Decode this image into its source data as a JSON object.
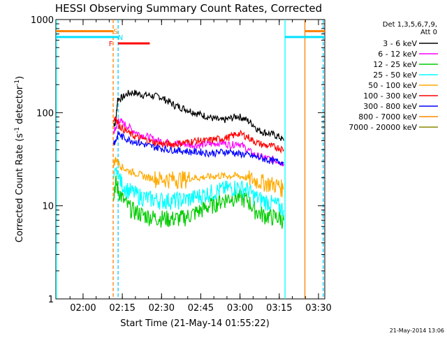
{
  "chart_data": {
    "type": "line",
    "title": "HESSI Observing Summary Count Rates, Corrected",
    "xlabel": "Start Time (21-May-14 01:55:22)",
    "ylabel_main": "Corrected Count Rate (s",
    "ylabel_sup1": "-1",
    "ylabel_mid": " detector",
    "ylabel_sup2": "-1",
    "ylabel_end": ")",
    "yscale": "log",
    "xlim_minutes": [
      -5.4,
      97.4
    ],
    "ylim": [
      1,
      1000
    ],
    "x_ticks": [
      {
        "minute": 5,
        "label": "02:00"
      },
      {
        "minute": 20,
        "label": "02:15"
      },
      {
        "minute": 35,
        "label": "02:30"
      },
      {
        "minute": 50,
        "label": "02:45"
      },
      {
        "minute": 65,
        "label": "03:00"
      },
      {
        "minute": 80,
        "label": "03:15"
      },
      {
        "minute": 95,
        "label": "03:30"
      }
    ],
    "y_ticks": [
      {
        "value": 1,
        "label": "1"
      },
      {
        "value": 10,
        "label": "10"
      },
      {
        "value": 100,
        "label": "100"
      },
      {
        "value": 1000,
        "label": "1000"
      }
    ],
    "legend_header": [
      "Det 1,3,5,6,7,9,",
      "Att 0"
    ],
    "series": [
      {
        "name": "3 - 6 keV",
        "color": "#000000",
        "x": [
          16.7,
          17.5,
          18.2,
          20,
          22,
          24,
          26,
          28,
          30,
          32,
          34,
          36,
          38,
          40,
          42,
          44,
          46,
          48,
          50,
          52,
          54,
          56,
          58,
          60,
          62,
          64,
          66,
          68,
          70,
          72,
          74,
          76,
          78,
          80,
          81.7
        ],
        "y": [
          75,
          80,
          140,
          145,
          160,
          165,
          160,
          155,
          155,
          150,
          150,
          140,
          130,
          120,
          115,
          110,
          105,
          100,
          95,
          92,
          88,
          85,
          82,
          85,
          88,
          92,
          88,
          82,
          75,
          65,
          62,
          60,
          58,
          55,
          50
        ]
      },
      {
        "name": "6 - 12 keV",
        "color": "#ff00ff",
        "x": [
          16.7,
          17.5,
          18.5,
          20,
          22,
          24,
          26,
          28,
          30,
          32,
          34,
          36,
          38,
          40,
          42,
          44,
          46,
          48,
          50,
          52,
          54,
          56,
          58,
          60,
          62,
          64,
          66,
          68,
          70,
          72,
          74,
          76,
          78,
          80,
          81.7
        ],
        "y": [
          62,
          68,
          85,
          78,
          72,
          65,
          60,
          57,
          55,
          52,
          50,
          49,
          48,
          47,
          46,
          46,
          45,
          45,
          45,
          46,
          46,
          47,
          48,
          46,
          45,
          48,
          44,
          40,
          36,
          34,
          33,
          32,
          31,
          30,
          28
        ]
      },
      {
        "name": "12 - 25 keV",
        "color": "#00cc00",
        "x": [
          16.7,
          17.5,
          18.5,
          20,
          22,
          24,
          26,
          28,
          30,
          32,
          34,
          36,
          38,
          40,
          42,
          44,
          46,
          48,
          50,
          52,
          54,
          56,
          58,
          60,
          62,
          64,
          66,
          68,
          70,
          72,
          74,
          76,
          78,
          80,
          81.7
        ],
        "y": [
          14,
          18,
          15,
          12,
          10,
          9,
          8.5,
          8,
          7.8,
          7.5,
          7.5,
          7.4,
          7.3,
          7.3,
          7.4,
          7.6,
          8,
          8.5,
          9,
          9.6,
          10.2,
          10.8,
          11.5,
          12,
          12.3,
          12.5,
          12,
          11.5,
          9.5,
          8.5,
          8,
          7.8,
          7.6,
          7.5,
          7
        ]
      },
      {
        "name": "25 - 50 keV",
        "color": "#00ffff",
        "x": [
          16.7,
          17.5,
          18.5,
          20,
          22,
          24,
          26,
          28,
          30,
          32,
          34,
          36,
          38,
          40,
          42,
          44,
          46,
          48,
          50,
          52,
          54,
          56,
          58,
          60,
          62,
          64,
          66,
          68,
          70,
          72,
          74,
          76,
          78,
          80,
          81.7
        ],
        "y": [
          20,
          25,
          21,
          17,
          15,
          14,
          13,
          12.5,
          12,
          11.8,
          11.6,
          11.5,
          11.5,
          11.5,
          11.6,
          11.8,
          12,
          12.5,
          13,
          13.5,
          14,
          14.5,
          15,
          15.5,
          15.8,
          16,
          15.5,
          15,
          13,
          12,
          11.5,
          11,
          10.5,
          10,
          9
        ]
      },
      {
        "name": "50 - 100 keV",
        "color": "#ffaa00",
        "x": [
          16.7,
          17.5,
          18.5,
          20,
          22,
          24,
          26,
          28,
          30,
          32,
          34,
          36,
          38,
          40,
          42,
          44,
          46,
          48,
          50,
          52,
          54,
          56,
          58,
          60,
          62,
          64,
          66,
          68,
          70,
          72,
          74,
          76,
          78,
          80,
          81.7
        ],
        "y": [
          28,
          32,
          29,
          26,
          24,
          23,
          22,
          21,
          20,
          20,
          19.5,
          19.5,
          19.5,
          19.5,
          19.5,
          19.5,
          20,
          20,
          20,
          20.5,
          20.5,
          21,
          21,
          21,
          21,
          21,
          20.5,
          20,
          19,
          18.5,
          18,
          17.5,
          17,
          16.5,
          15
        ]
      },
      {
        "name": "100 - 300 keV",
        "color": "#ff0000",
        "x": [
          16.7,
          17.5,
          18.5,
          20,
          22,
          24,
          26,
          28,
          30,
          32,
          34,
          36,
          38,
          40,
          42,
          44,
          46,
          48,
          50,
          52,
          54,
          56,
          58,
          60,
          62,
          64,
          66,
          68,
          70,
          72,
          74,
          76,
          78,
          80,
          81.7
        ],
        "y": [
          85,
          90,
          75,
          68,
          62,
          57,
          54,
          52,
          50,
          48,
          47,
          46,
          46,
          46,
          47,
          48,
          49,
          50,
          50,
          50,
          51,
          52,
          53,
          54,
          56,
          60,
          58,
          55,
          50,
          47,
          45,
          44,
          43,
          42,
          40
        ]
      },
      {
        "name": "300 - 800 keV",
        "color": "#0000ff",
        "x": [
          16.7,
          17.5,
          18.5,
          20,
          22,
          24,
          26,
          28,
          30,
          32,
          34,
          36,
          38,
          40,
          42,
          44,
          46,
          48,
          50,
          52,
          54,
          56,
          58,
          60,
          62,
          64,
          66,
          68,
          70,
          72,
          74,
          76,
          78,
          80,
          81.7
        ],
        "y": [
          48,
          50,
          60,
          55,
          52,
          50,
          48,
          46,
          44,
          43,
          42,
          41,
          40,
          40,
          39,
          39,
          38,
          38,
          38,
          37,
          37,
          37,
          38,
          38,
          38,
          36,
          36,
          35,
          34,
          33,
          32,
          31,
          30,
          30,
          29
        ]
      },
      {
        "name": "800 - 7000 keV",
        "color": "#ff8800",
        "x": [],
        "y": []
      },
      {
        "name": "7000 - 20000 keV",
        "color": "#888800",
        "x": [],
        "y": []
      }
    ],
    "attenuator_segments": [
      {
        "label": "S",
        "color": "#ff8000",
        "x0": -5.4,
        "x1": 16.5,
        "level": 750,
        "label_minute": 17.4
      },
      {
        "label": "",
        "color": "#ff8000",
        "x0": 89.8,
        "x1": 97.4,
        "level": 750,
        "label_minute": null
      },
      {
        "label": "N",
        "color": "#00e0ff",
        "x0": -5.4,
        "x1": 18.4,
        "level": 650,
        "label_minute": 19.3
      },
      {
        "label": "",
        "color": "#00e0ff",
        "x0": 82.2,
        "x1": 97.4,
        "level": 650,
        "label_minute": null
      },
      {
        "label": "F",
        "color": "#ff0000",
        "x0": 18.4,
        "x1": 30.5,
        "level": 555,
        "label_minute": 15.6
      }
    ],
    "markers": [
      {
        "minute": -5.2,
        "color": "#00ffff",
        "style": "solid"
      },
      {
        "minute": 16.5,
        "color": "#ff8000",
        "style": "dashed"
      },
      {
        "minute": 18.4,
        "color": "#00ccff",
        "style": "dashed"
      },
      {
        "minute": 82.2,
        "color": "#00ffff",
        "style": "solid"
      },
      {
        "minute": 89.8,
        "color": "#ff8000",
        "style": "solid"
      },
      {
        "minute": 96.8,
        "color": "#00ccff",
        "style": "dashed"
      }
    ],
    "timestamp": "21-May-2014 13:06"
  }
}
